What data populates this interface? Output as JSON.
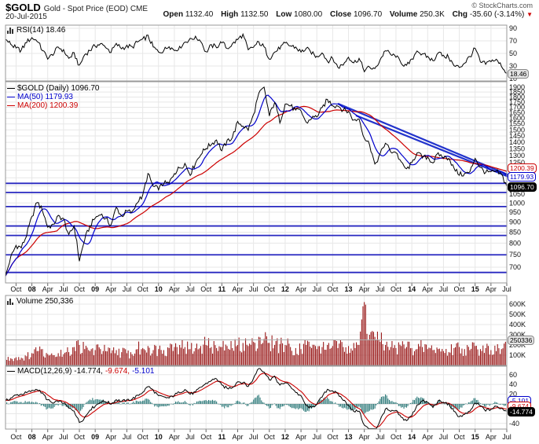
{
  "header": {
    "symbol": "$GOLD",
    "title": "Gold - Spot Price (EOD) CME",
    "date": "20-Jul-2015",
    "copyright": "© StockCharts.com",
    "quote": {
      "open_label": "Open",
      "open": "1132.40",
      "high_label": "High",
      "high": "1132.50",
      "low_label": "Low",
      "low": "1080.00",
      "close_label": "Close",
      "close": "1096.70",
      "volume_label": "Volume",
      "volume": "250.3K",
      "chg_label": "Chg",
      "chg": "-35.60 (-3.14%)"
    }
  },
  "panels": {
    "rsi": {
      "legend": "RSI(14) 18.46",
      "callout": "18.46"
    },
    "price": {
      "legend_symbol": "$GOLD (Daily) 1096.70",
      "legend_ma50": "MA(50) 1179.93",
      "legend_ma200": "MA(200) 1200.39",
      "callout_ma200": "1200.39",
      "callout_ma50": "1179.93",
      "callout_close": "1096.70"
    },
    "volume": {
      "legend": "Volume 250,336",
      "callout": "250336"
    },
    "macd": {
      "legend_main": "MACD(12,26,9) -14.774,",
      "legend_signal": "-9.674,",
      "legend_hist": "-5.101",
      "callout_hist": "-5.101",
      "callout_signal": "-9.674",
      "callout_main": "-14.774"
    }
  },
  "colors": {
    "price": "#000000",
    "ma50": "#0000cc",
    "ma200": "#cc0000",
    "trendline": "#2233cc",
    "support": "#2828c0",
    "volume_bar": "#9b1c1c",
    "macd_line": "#000000",
    "macd_signal": "#cc0000",
    "macd_hist": "#2e7a7a",
    "grid": "#e7e7e7",
    "panel_border": "#999999",
    "axis_text": "#111111"
  },
  "x_axis": {
    "labels": [
      "Oct",
      "08",
      "Apr",
      "Jul",
      "Oct",
      "09",
      "Apr",
      "Jul",
      "Oct",
      "10",
      "Apr",
      "Jul",
      "Oct",
      "11",
      "Apr",
      "Jul",
      "Oct",
      "12",
      "Apr",
      "Jul",
      "Oct",
      "13",
      "Apr",
      "Jul",
      "Oct",
      "14",
      "Apr",
      "Jul",
      "Oct",
      "15",
      "Apr",
      "Jul"
    ],
    "start": "Aug-2007",
    "step_months": 1,
    "label_every": 3,
    "first_label_index": 2
  },
  "chart_data": [
    {
      "id": "rsi",
      "type": "line",
      "title": "RSI(14)",
      "x": "monthly Aug-2007..Jul-2015",
      "ylim": [
        0,
        100
      ],
      "ticks": [
        90,
        70,
        50,
        30,
        10
      ],
      "last": 18.46,
      "values": [
        72,
        65,
        58,
        55,
        68,
        75,
        70,
        55,
        42,
        48,
        60,
        55,
        42,
        50,
        30,
        48,
        55,
        62,
        65,
        60,
        52,
        65,
        58,
        62,
        60,
        68,
        72,
        78,
        60,
        52,
        55,
        62,
        55,
        60,
        68,
        73,
        76,
        70,
        52,
        63,
        60,
        68,
        58,
        65,
        72,
        80,
        55,
        60,
        68,
        60,
        42,
        52,
        58,
        66,
        62,
        60,
        52,
        58,
        50,
        45,
        52,
        38,
        42,
        28,
        32,
        45,
        35,
        42,
        22,
        28,
        25,
        40,
        55,
        48,
        45,
        35,
        30,
        40,
        55,
        48,
        45,
        38,
        52,
        46,
        44,
        30,
        28,
        35,
        45,
        58,
        36,
        33,
        38,
        40,
        30,
        18.46
      ]
    },
    {
      "id": "price",
      "type": "line",
      "title": "$GOLD (Daily)",
      "x": "monthly Aug-2007..Jul-2015",
      "yscale": "log",
      "ylim": [
        640,
        1955
      ],
      "tick_labels": [
        1900,
        1850,
        1800,
        1750,
        1700,
        1650,
        1600,
        1550,
        1500,
        1450,
        1400,
        1350,
        1300,
        1250,
        1050,
        1000,
        950,
        900,
        850,
        800,
        750,
        700
      ],
      "grid_step": 50,
      "close_last": 1096.7,
      "ma50_last": 1179.93,
      "ma200_last": 1200.39,
      "support_levels": [
        1115,
        1060,
        980,
        880,
        835,
        750,
        680
      ],
      "trendlines": [
        {
          "from": [
            63,
            1735
          ],
          "to": [
            98.4,
            1125
          ]
        },
        {
          "from": [
            66.4,
            1625
          ],
          "to": [
            98.4,
            1115
          ]
        }
      ],
      "values": [
        665,
        740,
        790,
        780,
        835,
        925,
        1005,
        960,
        875,
        885,
        930,
        915,
        835,
        880,
        725,
        815,
        880,
        920,
        940,
        915,
        885,
        975,
        930,
        955,
        950,
        1005,
        1040,
        1175,
        1095,
        1080,
        1115,
        1115,
        1180,
        1215,
        1245,
        1170,
        1250,
        1310,
        1355,
        1385,
        1420,
        1335,
        1410,
        1440,
        1565,
        1535,
        1500,
        1630,
        1830,
        1895,
        1620,
        1750,
        1565,
        1735,
        1715,
        1670,
        1665,
        1560,
        1600,
        1615,
        1690,
        1775,
        1720,
        1715,
        1675,
        1660,
        1580,
        1595,
        1435,
        1385,
        1235,
        1310,
        1395,
        1330,
        1325,
        1250,
        1205,
        1245,
        1325,
        1285,
        1290,
        1250,
        1315,
        1285,
        1285,
        1210,
        1170,
        1175,
        1185,
        1285,
        1215,
        1185,
        1185,
        1190,
        1170,
        1096.7
      ]
    },
    {
      "id": "volume",
      "type": "bar",
      "title": "Volume",
      "x": "monthly Aug-2007..Jul-2015",
      "unit": "thousands",
      "ticks": [
        {
          "label": "600K",
          "v": 600
        },
        {
          "label": "500K",
          "v": 500
        },
        {
          "label": "400K",
          "v": 400
        },
        {
          "label": "300K",
          "v": 300
        },
        {
          "label": "200K",
          "v": 200
        },
        {
          "label": "100K",
          "v": 100
        }
      ],
      "last": 250.336,
      "values": [
        60,
        70,
        80,
        75,
        90,
        120,
        140,
        160,
        110,
        100,
        120,
        110,
        130,
        180,
        200,
        160,
        140,
        150,
        160,
        140,
        120,
        150,
        130,
        120,
        110,
        160,
        170,
        190,
        150,
        160,
        150,
        170,
        180,
        200,
        180,
        160,
        170,
        190,
        200,
        180,
        170,
        180,
        190,
        170,
        200,
        220,
        190,
        230,
        280,
        260,
        220,
        200,
        210,
        200,
        180,
        170,
        160,
        200,
        170,
        160,
        180,
        200,
        190,
        170,
        180,
        190,
        220,
        200,
        620,
        300,
        280,
        230,
        200,
        180,
        170,
        190,
        180,
        170,
        160,
        180,
        160,
        150,
        160,
        140,
        130,
        170,
        180,
        160,
        150,
        190,
        160,
        170,
        150,
        140,
        160,
        250
      ]
    },
    {
      "id": "macd",
      "type": "line",
      "title": "MACD(12,26,9)",
      "x": "monthly Aug-2007..Jul-2015",
      "ticks": [
        60,
        40,
        20,
        0,
        -20,
        -40
      ],
      "last_macd": -14.774,
      "last_signal": -9.674,
      "last_hist": -5.101,
      "values": [
        6,
        12,
        18,
        20,
        23,
        27,
        30,
        22,
        8,
        1,
        5,
        2,
        -9,
        -14,
        -38,
        -28,
        -12,
        -4,
        4,
        5,
        0,
        9,
        5,
        8,
        10,
        17,
        24,
        36,
        28,
        16,
        14,
        12,
        18,
        24,
        30,
        20,
        24,
        34,
        42,
        48,
        52,
        38,
        32,
        34,
        46,
        44,
        36,
        52,
        76,
        66,
        50,
        56,
        38,
        44,
        36,
        24,
        16,
        -4,
        -8,
        0,
        14,
        30,
        27,
        20,
        8,
        -2,
        -16,
        -14,
        -44,
        -52,
        -56,
        -34,
        -10,
        -16,
        -14,
        -28,
        -34,
        -24,
        -2,
        6,
        3,
        -7,
        6,
        3,
        0,
        -16,
        -26,
        -22,
        -16,
        2,
        -4,
        -14,
        -11,
        -5,
        -9,
        -14.774
      ]
    }
  ]
}
